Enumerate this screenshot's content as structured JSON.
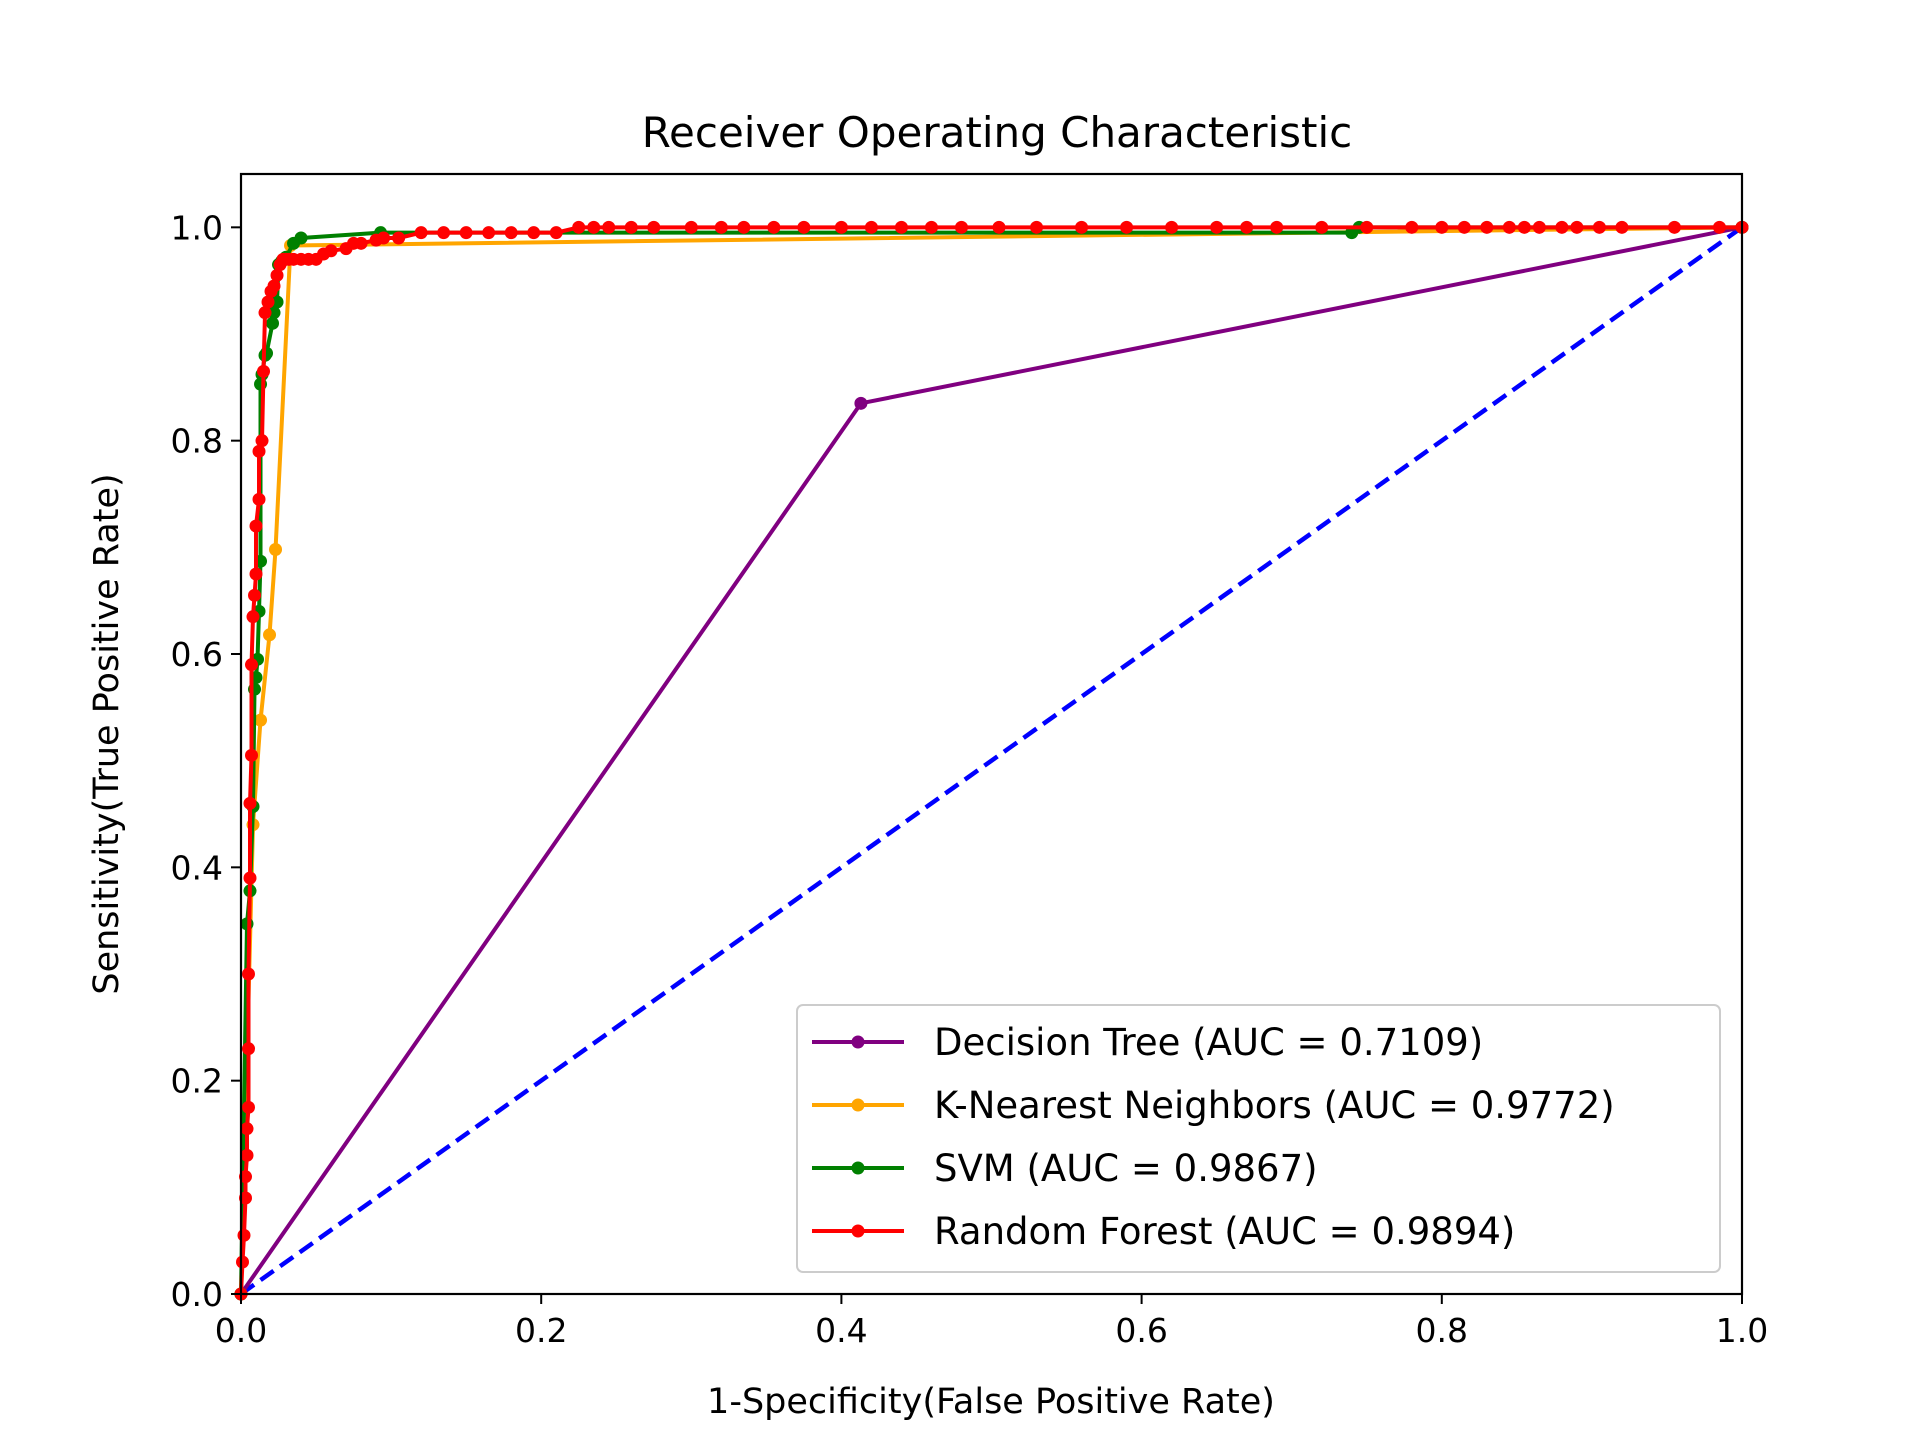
{
  "chart_data": {
    "type": "line",
    "title": "Receiver Operating Characteristic",
    "xlabel": "1-Specificity(False Positive Rate)",
    "ylabel": "Sensitivity(True Positive Rate)",
    "xlim": [
      0,
      1
    ],
    "ylim": [
      0,
      1.05
    ],
    "xticks": [
      "0.0",
      "0.2",
      "0.4",
      "0.6",
      "0.8",
      "1.0"
    ],
    "yticks": [
      "0.0",
      "0.2",
      "0.4",
      "0.6",
      "0.8",
      "1.0"
    ],
    "grid": false,
    "legend_position": "bottom-right",
    "reference_line": {
      "color": "#0000ff",
      "style": "dashed",
      "x": [
        0,
        1
      ],
      "y": [
        0,
        1
      ]
    },
    "series": [
      {
        "name": "Decision Tree (AUC = 0.7109)",
        "color": "#800080",
        "x": [
          0.0,
          0.413,
          1.0
        ],
        "y": [
          0.0,
          0.835,
          1.0
        ]
      },
      {
        "name": "K-Nearest Neighbors (AUC = 0.9772)",
        "color": "#ffa500",
        "x": [
          0.0,
          0.008,
          0.013,
          0.019,
          0.023,
          0.033,
          1.0
        ],
        "y": [
          0.0,
          0.44,
          0.538,
          0.618,
          0.698,
          0.983,
          1.0
        ]
      },
      {
        "name": "SVM (AUC = 0.9867)",
        "color": "#008000",
        "x": [
          0.0,
          0.004,
          0.006,
          0.008,
          0.009,
          0.01,
          0.011,
          0.012,
          0.013,
          0.013,
          0.014,
          0.016,
          0.017,
          0.021,
          0.022,
          0.024,
          0.025,
          0.027,
          0.03,
          0.035,
          0.04,
          0.093,
          0.74,
          0.745,
          1.0
        ],
        "y": [
          0.0,
          0.347,
          0.378,
          0.457,
          0.567,
          0.578,
          0.595,
          0.64,
          0.687,
          0.853,
          0.862,
          0.88,
          0.882,
          0.91,
          0.92,
          0.93,
          0.965,
          0.968,
          0.972,
          0.985,
          0.99,
          0.995,
          0.995,
          1.0,
          1.0
        ]
      },
      {
        "name": "Random Forest (AUC = 0.9894)",
        "color": "#ff0000",
        "x": [
          0.0,
          0.001,
          0.002,
          0.003,
          0.003,
          0.004,
          0.004,
          0.005,
          0.005,
          0.005,
          0.006,
          0.006,
          0.007,
          0.007,
          0.008,
          0.009,
          0.01,
          0.01,
          0.012,
          0.012,
          0.014,
          0.015,
          0.016,
          0.018,
          0.02,
          0.022,
          0.024,
          0.026,
          0.028,
          0.03,
          0.032,
          0.035,
          0.04,
          0.045,
          0.05,
          0.055,
          0.06,
          0.07,
          0.075,
          0.08,
          0.09,
          0.095,
          0.105,
          0.12,
          0.135,
          0.15,
          0.165,
          0.18,
          0.195,
          0.21,
          0.225,
          0.235,
          0.245,
          0.26,
          0.275,
          0.3,
          0.32,
          0.335,
          0.355,
          0.375,
          0.4,
          0.42,
          0.44,
          0.46,
          0.48,
          0.505,
          0.53,
          0.56,
          0.59,
          0.62,
          0.65,
          0.67,
          0.69,
          0.72,
          0.75,
          0.78,
          0.8,
          0.815,
          0.83,
          0.845,
          0.855,
          0.865,
          0.88,
          0.89,
          0.905,
          0.92,
          0.955,
          0.985,
          1.0
        ],
        "y": [
          0.0,
          0.03,
          0.055,
          0.09,
          0.11,
          0.13,
          0.155,
          0.175,
          0.23,
          0.3,
          0.39,
          0.46,
          0.505,
          0.59,
          0.635,
          0.655,
          0.675,
          0.72,
          0.745,
          0.79,
          0.8,
          0.865,
          0.92,
          0.93,
          0.94,
          0.945,
          0.955,
          0.965,
          0.97,
          0.97,
          0.97,
          0.97,
          0.97,
          0.97,
          0.97,
          0.975,
          0.978,
          0.98,
          0.985,
          0.985,
          0.988,
          0.99,
          0.99,
          0.995,
          0.995,
          0.995,
          0.995,
          0.995,
          0.995,
          0.995,
          1.0,
          1.0,
          1.0,
          1.0,
          1.0,
          1.0,
          1.0,
          1.0,
          1.0,
          1.0,
          1.0,
          1.0,
          1.0,
          1.0,
          1.0,
          1.0,
          1.0,
          1.0,
          1.0,
          1.0,
          1.0,
          1.0,
          1.0,
          1.0,
          1.0,
          1.0,
          1.0,
          1.0,
          1.0,
          1.0,
          1.0,
          1.0,
          1.0,
          1.0,
          1.0,
          1.0,
          1.0,
          1.0,
          1.0
        ]
      }
    ]
  }
}
